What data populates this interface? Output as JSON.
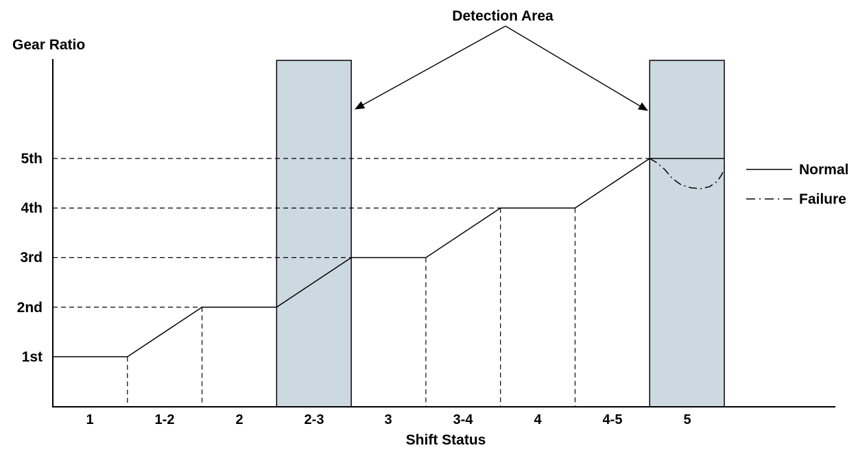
{
  "annotation": {
    "detection_area_label": "Detection Area"
  },
  "axes": {
    "y_title": "Gear Ratio",
    "x_title": "Shift Status"
  },
  "y_ticks": [
    "1st",
    "2nd",
    "3rd",
    "4th",
    "5th"
  ],
  "legend": {
    "normal": "Normal",
    "failure": "Failure"
  },
  "colors": {
    "background": "#ffffff",
    "line": "#000000",
    "detection_band_fill": "#cdd9e0",
    "detection_band_border": "#000000"
  },
  "chart_data": {
    "type": "line",
    "title": "Detection Area",
    "xlabel": "Shift Status",
    "ylabel": "Gear Ratio",
    "categories": [
      "1",
      "1-2",
      "2",
      "2-3",
      "3",
      "3-4",
      "4",
      "4-5",
      "5"
    ],
    "y_tick_labels": [
      "1st",
      "2nd",
      "3rd",
      "4th",
      "5th"
    ],
    "ylim_gears": [
      1,
      5
    ],
    "grid": "dashed horizontal at each gear level up to where Normal line reaches it",
    "legend_position": "right",
    "units_note": "x values are category-boundary units 0-9; boundary i is the left edge of categories[i]; y values are gear numbers (1=1st ... 5=5th)",
    "series": [
      {
        "name": "Normal",
        "style": "solid",
        "points": [
          [
            0,
            1
          ],
          [
            1,
            1
          ],
          [
            2,
            2
          ],
          [
            3,
            2
          ],
          [
            4,
            3
          ],
          [
            5,
            3
          ],
          [
            6,
            4
          ],
          [
            7,
            4
          ],
          [
            8,
            5
          ],
          [
            9,
            5
          ]
        ]
      },
      {
        "name": "Failure",
        "style": "dash-dot",
        "points": [
          [
            8.0,
            5.0
          ],
          [
            8.1,
            4.91
          ],
          [
            8.2,
            4.78
          ],
          [
            8.3,
            4.6
          ],
          [
            8.42,
            4.47
          ],
          [
            8.55,
            4.41
          ],
          [
            8.68,
            4.39
          ],
          [
            8.8,
            4.43
          ],
          [
            8.9,
            4.53
          ],
          [
            8.96,
            4.66
          ],
          [
            9.0,
            4.78
          ]
        ]
      }
    ],
    "detection_areas": [
      {
        "label": "2-3",
        "u_range": [
          3,
          4
        ]
      },
      {
        "label": "5",
        "u_range": [
          8,
          9
        ]
      }
    ],
    "gridlines": [
      {
        "gear": 2,
        "end_u": 2
      },
      {
        "gear": 3,
        "end_u": 4
      },
      {
        "gear": 4,
        "end_u": 6
      },
      {
        "gear": 5,
        "end_u": 8
      }
    ],
    "drop_lines_u": [
      1,
      2,
      5,
      6,
      7
    ]
  }
}
